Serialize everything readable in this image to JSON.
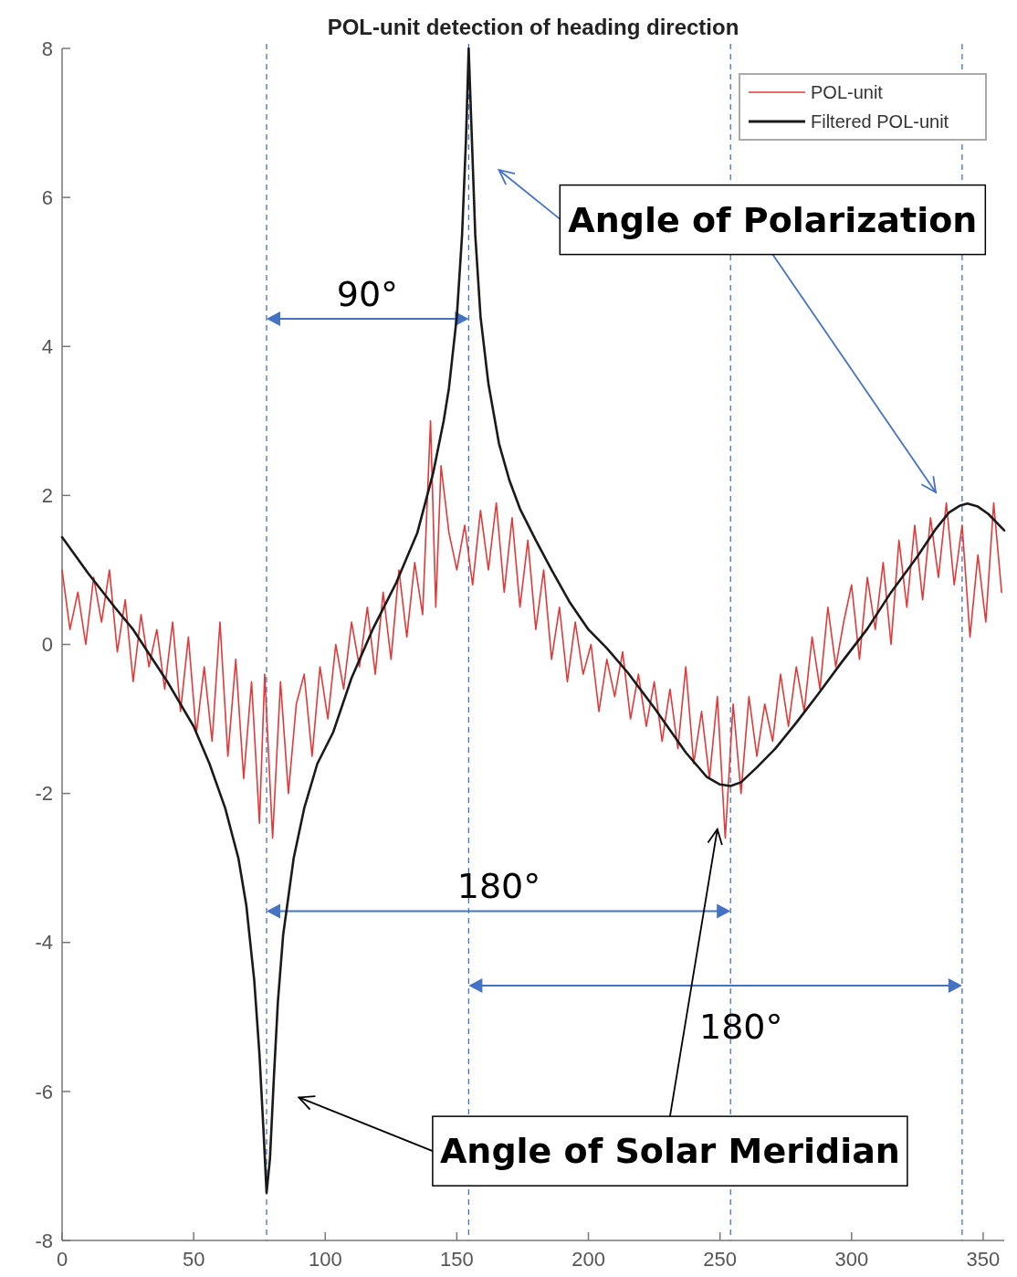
{
  "chart_data": {
    "type": "line",
    "title": "POL-unit detection of heading direction",
    "xlim": [
      0,
      358
    ],
    "xticks": [
      0,
      50,
      100,
      150,
      200,
      250,
      300,
      350
    ],
    "ylim": [
      -8,
      8
    ],
    "yticks": [
      -8,
      -6,
      -4,
      -2,
      0,
      2,
      4,
      6,
      8
    ],
    "grid": false,
    "legend": "top right",
    "marker": "none",
    "series": [
      {
        "name": "POL-unit",
        "color": "#e03a3a",
        "x": [
          0,
          3,
          6,
          9,
          12,
          15,
          18,
          21,
          24,
          27,
          30,
          33,
          36,
          39,
          42,
          45,
          48,
          51,
          54,
          57,
          60,
          63,
          66,
          69,
          72,
          75,
          77,
          80,
          83,
          86,
          89,
          92,
          95,
          98,
          101,
          104,
          107,
          110,
          113,
          116,
          119,
          122,
          125,
          128,
          131,
          134,
          137,
          140,
          142,
          144,
          147,
          150,
          153,
          156,
          159,
          162,
          165,
          168,
          171,
          174,
          177,
          180,
          183,
          186,
          189,
          192,
          195,
          198,
          201,
          204,
          207,
          210,
          213,
          216,
          219,
          222,
          225,
          228,
          231,
          234,
          237,
          240,
          243,
          246,
          249,
          252,
          255,
          258,
          261,
          264,
          267,
          270,
          273,
          276,
          279,
          282,
          285,
          288,
          291,
          294,
          297,
          300,
          303,
          306,
          309,
          312,
          315,
          318,
          321,
          324,
          327,
          330,
          333,
          336,
          339,
          342,
          345,
          348,
          351,
          354,
          357
        ],
        "values": [
          1.0,
          0.2,
          0.7,
          0.0,
          0.9,
          0.3,
          1.0,
          -0.1,
          0.6,
          -0.5,
          0.4,
          -0.3,
          0.2,
          -0.6,
          0.3,
          -0.9,
          0.1,
          -1.2,
          -0.3,
          -1.3,
          0.3,
          -1.5,
          -0.2,
          -1.8,
          -0.5,
          -2.4,
          -0.4,
          -2.6,
          -0.5,
          -2.0,
          -0.8,
          -0.4,
          -1.5,
          -0.3,
          -1.0,
          0.0,
          -0.6,
          0.3,
          -0.3,
          0.5,
          -0.4,
          0.7,
          -0.2,
          1.0,
          0.1,
          1.1,
          0.4,
          3.0,
          0.5,
          2.4,
          1.5,
          1.0,
          1.6,
          0.8,
          1.8,
          1.0,
          1.9,
          0.7,
          1.7,
          0.5,
          1.4,
          0.2,
          1.0,
          -0.2,
          0.5,
          -0.5,
          0.3,
          -0.4,
          0.0,
          -0.9,
          -0.2,
          -0.7,
          -0.1,
          -1.0,
          -0.4,
          -1.1,
          -0.5,
          -1.3,
          -0.6,
          -1.4,
          -0.3,
          -1.6,
          -0.9,
          -1.8,
          -0.7,
          -2.6,
          -0.8,
          -2.0,
          -0.7,
          -1.5,
          -0.8,
          -1.3,
          -0.4,
          -1.1,
          -0.3,
          -0.9,
          0.1,
          -0.6,
          0.5,
          -0.3,
          0.3,
          0.8,
          -0.2,
          0.9,
          0.2,
          1.1,
          0.0,
          1.4,
          0.5,
          1.6,
          0.6,
          1.7,
          0.9,
          1.9,
          0.8,
          1.6,
          0.1,
          1.2,
          0.3,
          1.9,
          0.7
        ]
      },
      {
        "name": "Filtered POL-unit",
        "color": "#1a1a1a",
        "x": [
          0,
          10,
          20,
          27,
          40,
          50,
          56,
          62,
          67,
          70,
          73,
          75,
          76.5,
          77.7,
          79,
          80.5,
          82,
          84,
          88,
          92,
          97,
          103,
          110,
          118,
          127,
          135,
          141,
          145,
          147,
          150,
          152,
          153.5,
          154.5,
          155.5,
          157,
          159,
          162,
          166,
          170,
          174,
          180,
          186,
          193,
          200,
          207,
          215,
          225,
          237,
          245,
          250,
          254,
          258,
          264,
          271,
          279,
          287,
          296,
          306,
          315,
          325,
          332,
          337,
          341,
          344,
          348,
          352,
          358
        ],
        "values": [
          1.44,
          0.95,
          0.5,
          0.2,
          -0.5,
          -1.1,
          -1.6,
          -2.2,
          -2.87,
          -3.5,
          -4.5,
          -5.5,
          -6.5,
          -7.36,
          -6.9,
          -5.8,
          -4.8,
          -3.9,
          -2.87,
          -2.2,
          -1.6,
          -1.18,
          -0.45,
          0.2,
          0.83,
          1.5,
          2.3,
          3.0,
          3.44,
          4.4,
          5.5,
          6.8,
          8,
          7.0,
          5.5,
          4.4,
          3.5,
          2.7,
          2.2,
          1.82,
          1.4,
          1.0,
          0.56,
          0.2,
          -0.05,
          -0.38,
          -0.85,
          -1.45,
          -1.78,
          -1.88,
          -1.9,
          -1.85,
          -1.65,
          -1.4,
          -1.05,
          -0.68,
          -0.25,
          0.21,
          0.7,
          1.18,
          1.55,
          1.77,
          1.86,
          1.89,
          1.85,
          1.75,
          1.53
        ]
      }
    ],
    "ref_lines": [
      {
        "axis": "x",
        "value": 77.7,
        "color": "#4472c4",
        "line_style": "dashed"
      },
      {
        "axis": "x",
        "value": 154.5,
        "color": "#4472c4",
        "line_style": "dashed"
      },
      {
        "axis": "x",
        "value": 254,
        "color": "#4472c4",
        "line_style": "dashed"
      },
      {
        "axis": "x",
        "value": 342,
        "color": "#4472c4",
        "line_style": "dashed"
      }
    ],
    "annotations": [
      "90°",
      "180°",
      "180°",
      "Angle of Polarization",
      "Angle of Solar Meridian"
    ]
  }
}
